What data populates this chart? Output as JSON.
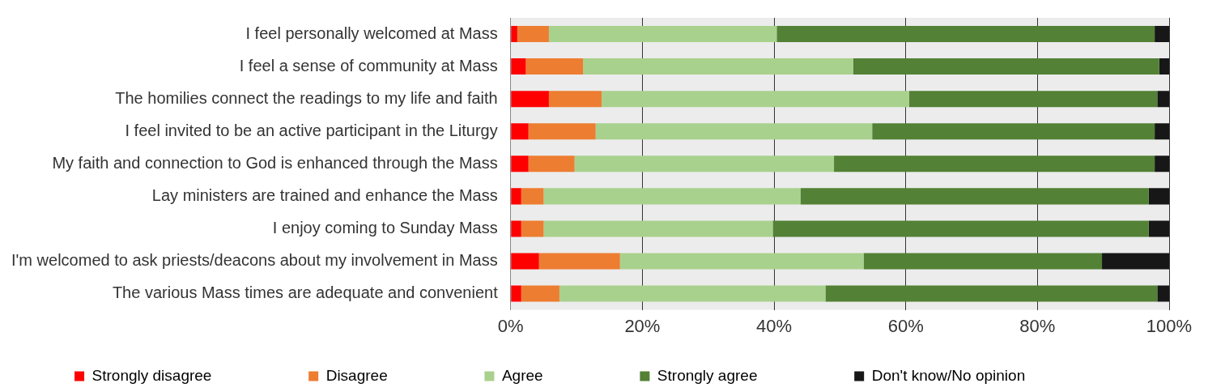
{
  "chart_data": {
    "type": "bar",
    "orientation": "horizontal",
    "stacked": true,
    "categories": [
      "I feel personally welcomed at Mass",
      "I feel a sense of community at Mass",
      "The homilies connect the readings to my life and faith",
      "I feel invited to be an active participant in the Liturgy",
      "My faith and connection to God is enhanced through the Mass",
      "Lay ministers are trained and enhance the Mass",
      "I enjoy coming to Sunday Mass",
      "I'm welcomed to ask priests/deacons about my involvement in Mass",
      "The various Mass times are adequate and convenient"
    ],
    "series": [
      {
        "name": "Strongly disagree",
        "color": "#ff0000",
        "values": [
          1.0,
          2.3,
          5.8,
          2.7,
          2.7,
          1.6,
          1.6,
          4.3,
          1.6
        ]
      },
      {
        "name": "Disagree",
        "color": "#ed7d31",
        "values": [
          4.8,
          8.7,
          8.0,
          10.2,
          7.0,
          3.4,
          3.4,
          12.3,
          5.8
        ]
      },
      {
        "name": "Agree",
        "color": "#a9d18e",
        "values": [
          34.6,
          41.0,
          46.7,
          42.0,
          39.4,
          39.0,
          34.8,
          37.0,
          40.4
        ]
      },
      {
        "name": "Strongly agree",
        "color": "#538135",
        "values": [
          57.4,
          46.5,
          37.7,
          42.9,
          48.7,
          52.9,
          57.1,
          36.2,
          50.4
        ]
      },
      {
        "name": "Don't know/No opinion",
        "color": "#171717",
        "values": [
          2.2,
          1.5,
          1.8,
          2.2,
          2.2,
          3.1,
          3.1,
          10.2,
          1.8
        ]
      }
    ],
    "xlim": [
      0,
      100
    ],
    "xticks": [
      {
        "value": 0,
        "label": "0%"
      },
      {
        "value": 20,
        "label": "20%"
      },
      {
        "value": 40,
        "label": "40%"
      },
      {
        "value": 60,
        "label": "60%"
      },
      {
        "value": 80,
        "label": "80%"
      },
      {
        "value": 100,
        "label": "100%"
      }
    ],
    "grid": "x",
    "legend": "bottom"
  }
}
